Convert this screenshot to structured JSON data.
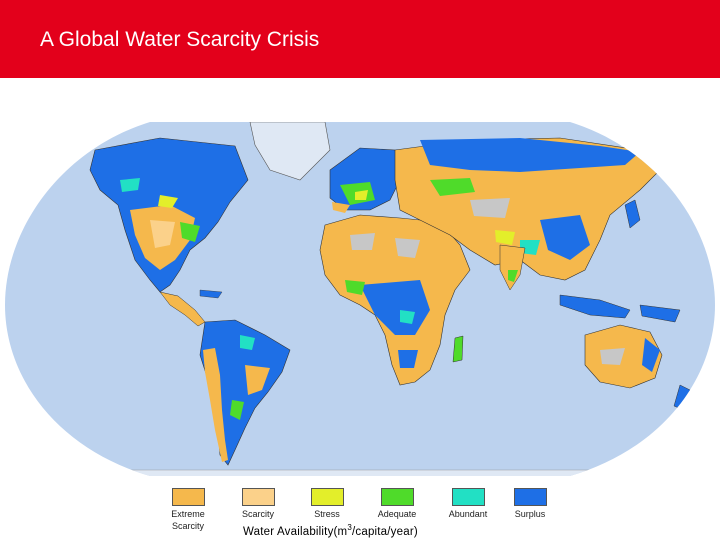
{
  "title": "A Global Water Scarcity Crisis",
  "colors": {
    "title_bar": "#e3001b",
    "ocean": "#bcd2ee",
    "extreme_scarcity": "#f5b84c",
    "scarcity": "#fbd18a",
    "stress": "#e3ee2a",
    "adequate": "#4fdb2a",
    "abundant": "#22e0c4",
    "surplus": "#1e6fe6",
    "no_data": "#c7c7c7"
  },
  "legend": {
    "items": [
      {
        "label": "Extreme Scarcity",
        "color": "#f5b84c"
      },
      {
        "label": "Scarcity",
        "color": "#fbd18a"
      },
      {
        "label": "Stress",
        "color": "#e3ee2a"
      },
      {
        "label": "Adequate",
        "color": "#4fdb2a"
      },
      {
        "label": "Abundant",
        "color": "#22e0c4"
      },
      {
        "label": "Surplus",
        "color": "#1e6fe6"
      }
    ],
    "axis_label_prefix": "Water Availability(m",
    "axis_label_sup": "3",
    "axis_label_suffix": "/capita/year)"
  }
}
